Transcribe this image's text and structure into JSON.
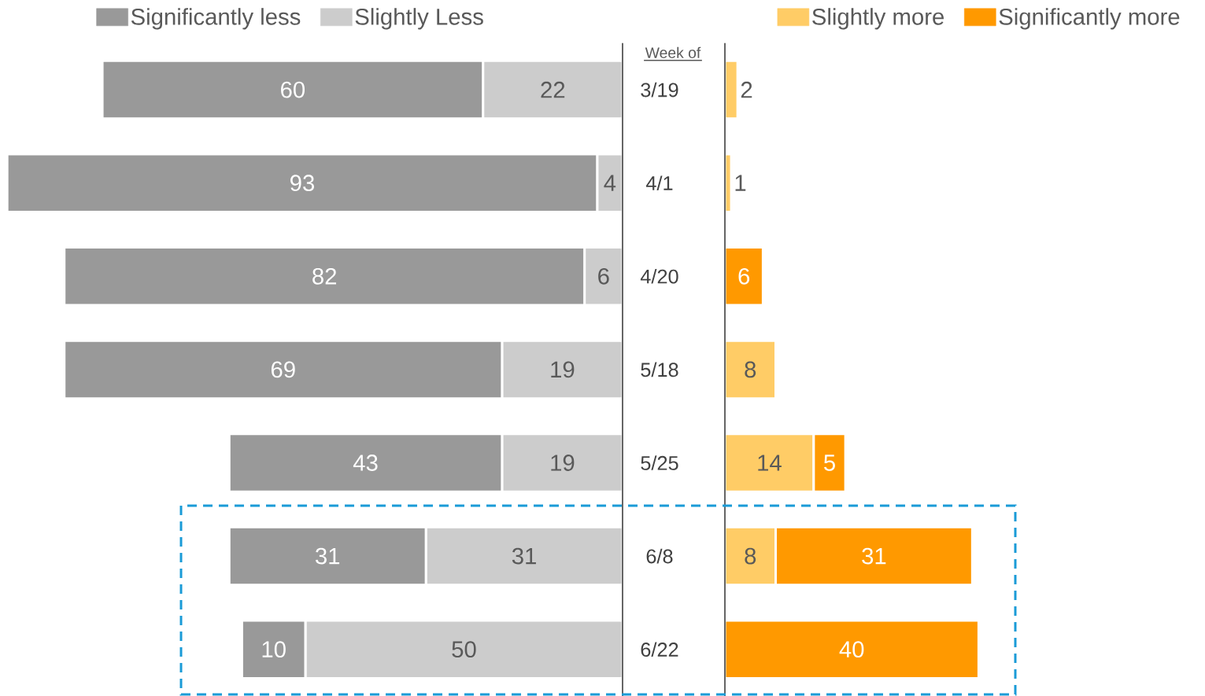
{
  "chart_data": [
    {
      "type": "bar",
      "orientation": "horizontal",
      "stacked": true,
      "data_labels": true,
      "tick_labels": "y",
      "ylabel": "Week of",
      "categories": [
        "3/19",
        "4/1",
        "4/20",
        "5/18",
        "5/25",
        "6/8",
        "6/22"
      ],
      "xlim": [
        97,
        0
      ],
      "series": [
        {
          "name": "Slightly Less",
          "color": "#cccccc",
          "values": [
            22,
            4,
            6,
            19,
            19,
            31,
            50
          ]
        },
        {
          "name": "Significantly less",
          "color": "#999999",
          "values": [
            60,
            93,
            82,
            69,
            43,
            31,
            10
          ]
        }
      ],
      "legend": "top"
    },
    {
      "type": "bar",
      "orientation": "horizontal",
      "stacked": true,
      "data_labels": true,
      "tick_labels": false,
      "categories": [
        null,
        null,
        null,
        null,
        null,
        null,
        null
      ],
      "xlim": [
        0,
        40
      ],
      "series": [
        {
          "name": "Slightly more",
          "color": "#ffcc66",
          "values": [
            2,
            1,
            null,
            8,
            14,
            8,
            null
          ]
        },
        {
          "name": "Significantly more",
          "color": "#ff9900",
          "values": [
            null,
            null,
            6,
            null,
            5,
            31,
            40
          ]
        }
      ],
      "legend": "top"
    }
  ]
}
